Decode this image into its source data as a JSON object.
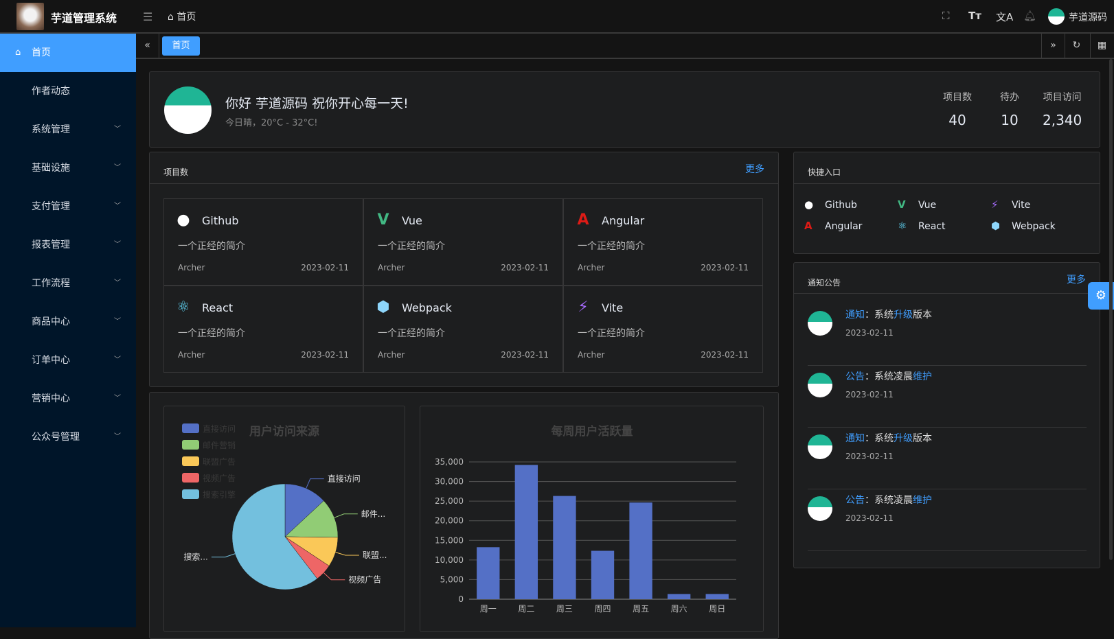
{
  "header": {
    "app_title": "芋道管理系统",
    "breadcrumb": "首页",
    "username": "芋道源码",
    "icons": [
      "fullscreen-icon",
      "font-size-icon",
      "translate-icon",
      "bell-icon"
    ]
  },
  "sidebar": {
    "items": [
      {
        "label": "首页",
        "active": true
      },
      {
        "label": "作者动态"
      },
      {
        "label": "系统管理",
        "expandable": true
      },
      {
        "label": "基础设施",
        "expandable": true
      },
      {
        "label": "支付管理",
        "expandable": true
      },
      {
        "label": "报表管理",
        "expandable": true
      },
      {
        "label": "工作流程",
        "expandable": true
      },
      {
        "label": "商品中心",
        "expandable": true
      },
      {
        "label": "订单中心",
        "expandable": true
      },
      {
        "label": "营销中心",
        "expandable": true
      },
      {
        "label": "公众号管理",
        "expandable": true
      }
    ]
  },
  "tabs": {
    "items": [
      "首页"
    ]
  },
  "welcome": {
    "greeting": "你好 芋道源码 祝你开心每一天!",
    "weather": "今日晴，20°C - 32°C!",
    "stats": [
      {
        "label": "项目数",
        "value": "40"
      },
      {
        "label": "待办",
        "value": "10"
      },
      {
        "label": "项目访问",
        "value": "2,340"
      }
    ]
  },
  "projects": {
    "title": "项目数",
    "more": "更多",
    "items": [
      {
        "name": "Github",
        "icon": "github-icon",
        "color": "#ffffff",
        "desc": "一个正经的简介",
        "author": "Archer",
        "date": "2023-02-11"
      },
      {
        "name": "Vue",
        "icon": "vue-icon",
        "color": "#42b883",
        "desc": "一个正经的简介",
        "author": "Archer",
        "date": "2023-02-11"
      },
      {
        "name": "Angular",
        "icon": "angular-icon",
        "color": "#dd1b16",
        "desc": "一个正经的简介",
        "author": "Archer",
        "date": "2023-02-11"
      },
      {
        "name": "React",
        "icon": "react-icon",
        "color": "#61dafb",
        "desc": "一个正经的简介",
        "author": "Archer",
        "date": "2023-02-11"
      },
      {
        "name": "Webpack",
        "icon": "webpack-icon",
        "color": "#8ed6fb",
        "desc": "一个正经的简介",
        "author": "Archer",
        "date": "2023-02-11"
      },
      {
        "name": "Vite",
        "icon": "vite-icon",
        "color": "#a76bfe",
        "desc": "一个正经的简介",
        "author": "Archer",
        "date": "2023-02-11"
      }
    ]
  },
  "quick": {
    "title": "快捷入口",
    "items": [
      "Github",
      "Vue",
      "Vite",
      "Angular",
      "React",
      "Webpack"
    ]
  },
  "notices": {
    "title": "通知公告",
    "more": "更多",
    "items": [
      {
        "type": "通知",
        "a": "：系统",
        "b": "升级",
        "c": "版本",
        "date": "2023-02-11"
      },
      {
        "type": "公告",
        "a": "：系统凌晨",
        "b": "维护",
        "c": "",
        "date": "2023-02-11"
      },
      {
        "type": "通知",
        "a": "：系统",
        "b": "升级",
        "c": "版本",
        "date": "2023-02-11"
      },
      {
        "type": "公告",
        "a": "：系统凌晨",
        "b": "维护",
        "c": "",
        "date": "2023-02-11"
      }
    ]
  },
  "chart_data": [
    {
      "type": "pie",
      "title": "用户访问来源",
      "legend_position": "top-left",
      "categories": [
        "直接访问",
        "邮件营销",
        "联盟广告",
        "视频广告",
        "搜索引擎"
      ],
      "slice_labels": [
        "直接访问",
        "邮件...",
        "联盟...",
        "视频广告",
        "搜索..."
      ],
      "values": [
        335,
        310,
        234,
        135,
        1548
      ],
      "colors": [
        "#5470c6",
        "#91cc75",
        "#fac858",
        "#ee6666",
        "#73c0de"
      ]
    },
    {
      "type": "bar",
      "title": "每周用户活跃量",
      "categories": [
        "周一",
        "周二",
        "周三",
        "周四",
        "周五",
        "周六",
        "周日"
      ],
      "values": [
        13253,
        34235,
        26321,
        12340,
        24643,
        1322,
        1324
      ],
      "ylim": [
        0,
        35000
      ],
      "yticks": [
        "0",
        "5,000",
        "10,000",
        "15,000",
        "20,000",
        "25,000",
        "30,000",
        "35,000"
      ],
      "grid": true,
      "color": "#5470c6"
    }
  ]
}
